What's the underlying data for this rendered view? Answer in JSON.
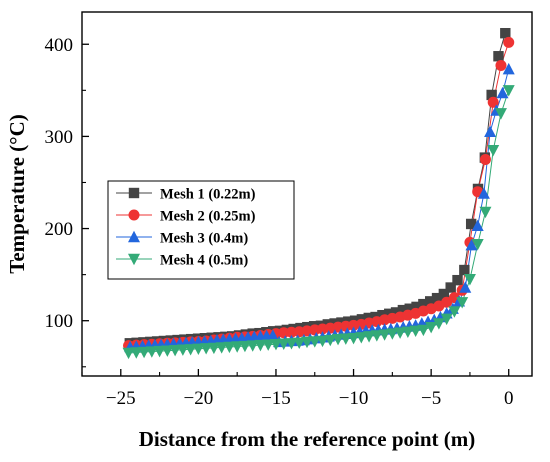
{
  "chart_data": {
    "type": "line",
    "title": "",
    "xlabel": "Distance from the reference point (m)",
    "ylabel": "Temperature (°C)",
    "xlim": [
      -27.5,
      1.5
    ],
    "ylim": [
      40,
      435
    ],
    "xticks": [
      -25,
      -20,
      -15,
      -10,
      -5,
      0
    ],
    "xtick_labels": [
      "−25",
      "−20",
      "−15",
      "−10",
      "−5",
      "0"
    ],
    "yticks": [
      100,
      200,
      300,
      400
    ],
    "ytick_labels": [
      "100",
      "200",
      "300",
      "400"
    ],
    "grid": false,
    "legend": "middle-left",
    "series": [
      {
        "name": "Mesh 1 (0.22m)",
        "color": "#444444",
        "marker": "square",
        "x": [
          -24.42,
          -23.98,
          -23.54,
          -23.1,
          -22.66,
          -22.22,
          -21.78,
          -21.34,
          -20.9,
          -20.46,
          -20.02,
          -19.58,
          -19.14,
          -18.7,
          -18.26,
          -17.82,
          -17.38,
          -16.94,
          -16.5,
          -16.06,
          -15.62,
          -15.18,
          -14.74,
          -14.3,
          -13.86,
          -13.42,
          -12.98,
          -12.54,
          -12.1,
          -11.66,
          -11.22,
          -10.78,
          -10.34,
          -9.9,
          -9.46,
          -9.02,
          -8.58,
          -8.14,
          -7.7,
          -7.26,
          -6.82,
          -6.38,
          -5.94,
          -5.5,
          -5.06,
          -4.62,
          -4.18,
          -3.74,
          -3.3,
          -2.86,
          -2.42,
          -1.98,
          -1.54,
          -1.1,
          -0.66,
          -0.22
        ],
        "y": [
          75.5,
          76,
          76.5,
          77,
          77.5,
          78,
          78.5,
          79,
          79.5,
          80,
          80.5,
          81,
          81.5,
          82,
          82.5,
          83,
          84,
          85,
          86,
          86.5,
          87.5,
          88.5,
          89,
          90,
          91,
          92,
          93,
          94,
          94.5,
          96,
          97,
          98,
          99,
          100,
          101.5,
          103,
          104,
          106,
          107.5,
          109,
          111.5,
          113,
          115,
          118,
          121,
          124.5,
          129,
          136,
          144,
          155,
          205,
          243,
          277,
          345,
          387,
          412
        ]
      },
      {
        "name": "Mesh 2 (0.25m)",
        "color": "#ee3333",
        "marker": "circle",
        "x": [
          -24.5,
          -24.0,
          -23.5,
          -23.0,
          -22.5,
          -22.0,
          -21.5,
          -21.0,
          -20.5,
          -20.0,
          -19.5,
          -19.0,
          -18.5,
          -18.0,
          -17.5,
          -17.0,
          -16.5,
          -16.0,
          -15.5,
          -15.0,
          -14.5,
          -14.0,
          -13.5,
          -13.0,
          -12.5,
          -12.0,
          -11.5,
          -11.0,
          -10.5,
          -10.0,
          -9.5,
          -9.0,
          -8.5,
          -8.0,
          -7.5,
          -7.0,
          -6.5,
          -6.0,
          -5.5,
          -5.0,
          -4.5,
          -4.0,
          -3.5,
          -3.0,
          -2.5,
          -2.0,
          -1.5,
          -1.0,
          -0.5,
          0.0
        ],
        "y": [
          73,
          73.5,
          74,
          74.5,
          75,
          75.5,
          76,
          76.5,
          77,
          77.5,
          78,
          79,
          80,
          81,
          82,
          82.5,
          83,
          84,
          85,
          86,
          87,
          87.5,
          88,
          89,
          90,
          91,
          92,
          93,
          94,
          95,
          96,
          97.5,
          99,
          101,
          102.5,
          104,
          106,
          108,
          110.5,
          113,
          116,
          120,
          125,
          133,
          185,
          240,
          275,
          337,
          377,
          402
        ]
      },
      {
        "name": "Mesh 3 (0.4m)",
        "color": "#2266dd",
        "marker": "triangle-up",
        "x": [
          -24.4,
          -24.0,
          -23.6,
          -23.2,
          -22.8,
          -22.4,
          -22.0,
          -21.6,
          -21.2,
          -20.8,
          -20.4,
          -20.0,
          -19.6,
          -19.2,
          -18.8,
          -18.4,
          -18.0,
          -17.6,
          -17.2,
          -16.8,
          -16.4,
          -16.0,
          -15.6,
          -15.2,
          -14.8,
          -14.4,
          -14.0,
          -13.6,
          -13.2,
          -12.8,
          -12.4,
          -12.0,
          -11.6,
          -11.2,
          -10.8,
          -10.4,
          -10.0,
          -9.6,
          -9.2,
          -8.8,
          -8.4,
          -8.0,
          -7.6,
          -7.2,
          -6.8,
          -6.4,
          -6.0,
          -5.6,
          -5.2,
          -4.8,
          -4.4,
          -4.0,
          -3.6,
          -3.2,
          -2.8,
          -2.4,
          -2.0,
          -1.6,
          -1.2,
          -0.8,
          -0.4,
          0.0
        ],
        "y": [
          71.5,
          72,
          72.5,
          73,
          73.5,
          74,
          74.5,
          75,
          75.5,
          76,
          76.5,
          77,
          77.5,
          78,
          79,
          79.5,
          80,
          80.5,
          81,
          82,
          82.5,
          83,
          83.5,
          84,
          77,
          77.5,
          78,
          78.5,
          79,
          80,
          81,
          82,
          83,
          84,
          85,
          86,
          87,
          88,
          89,
          89.5,
          90,
          90.5,
          91,
          92,
          93,
          94,
          95,
          97,
          99,
          101,
          104,
          108,
          113,
          121,
          136,
          182,
          203,
          238,
          305,
          328,
          347,
          373
        ]
      },
      {
        "name": "Mesh 4 (0.5m)",
        "color": "#33aa77",
        "marker": "triangle-down",
        "x": [
          -24.5,
          -24.0,
          -23.5,
          -23.0,
          -22.5,
          -22.0,
          -21.5,
          -21.0,
          -20.5,
          -20.0,
          -19.5,
          -19.0,
          -18.5,
          -18.0,
          -17.5,
          -17.0,
          -16.5,
          -16.0,
          -15.5,
          -15.0,
          -14.5,
          -14.0,
          -13.5,
          -13.0,
          -12.5,
          -12.0,
          -11.5,
          -11.0,
          -10.5,
          -10.0,
          -9.5,
          -9.0,
          -8.5,
          -8.0,
          -7.5,
          -7.0,
          -6.5,
          -6.0,
          -5.5,
          -5.0,
          -4.5,
          -4.0,
          -3.5,
          -3.0,
          -2.5,
          -2.0,
          -1.5,
          -1.0,
          -0.5,
          0.0
        ],
        "y": [
          65,
          65.5,
          66,
          66.5,
          67,
          67.5,
          68,
          68.5,
          69,
          69.5,
          70,
          70.5,
          71,
          71.5,
          72,
          72.5,
          73,
          73.5,
          74,
          74.5,
          75,
          75.5,
          76,
          77,
          77.5,
          78,
          79,
          80,
          80.5,
          81,
          82,
          83,
          84,
          85,
          86,
          87,
          88,
          89,
          90,
          93,
          97,
          102,
          110,
          120,
          145,
          183,
          218,
          285,
          325,
          350
        ]
      }
    ]
  }
}
